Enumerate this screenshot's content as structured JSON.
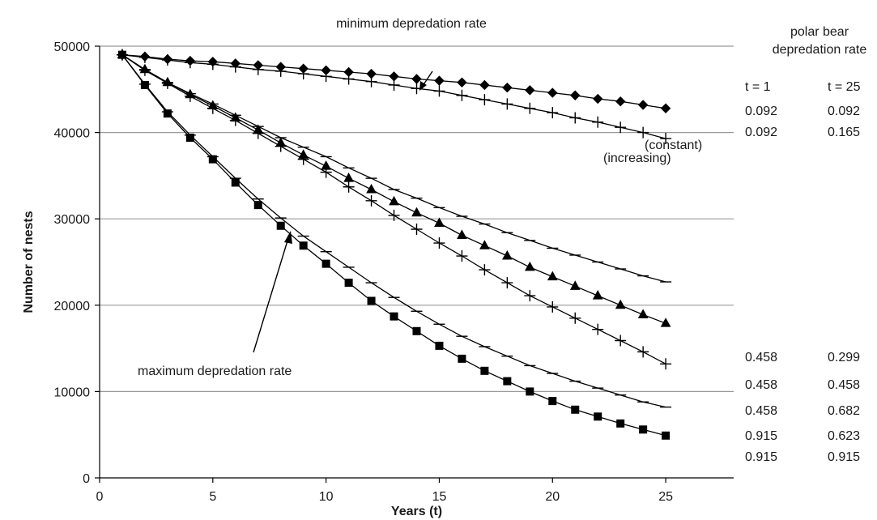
{
  "chart_data": {
    "type": "line",
    "xlabel": "Years (t)",
    "ylabel": "Number of nests",
    "xlim": [
      0,
      28
    ],
    "ylim": [
      0,
      50000
    ],
    "xticks": [
      "0",
      "5",
      "10",
      "15",
      "20",
      "25"
    ],
    "yticks": [
      "0",
      "10000",
      "20000",
      "30000",
      "40000",
      "50000"
    ],
    "grid": "horizontal",
    "x": [
      1,
      2,
      3,
      4,
      5,
      6,
      7,
      8,
      9,
      10,
      11,
      12,
      13,
      14,
      15,
      16,
      17,
      18,
      19,
      20,
      21,
      22,
      23,
      24,
      25
    ],
    "series": [
      {
        "marker": "diamond",
        "values": [
          49000,
          48800,
          48500,
          48300,
          48200,
          48000,
          47800,
          47600,
          47400,
          47200,
          47000,
          46800,
          46500,
          46200,
          46000,
          45800,
          45500,
          45200,
          44900,
          44600,
          44300,
          43900,
          43600,
          43200,
          42800
        ]
      },
      {
        "marker": "plus",
        "values": [
          49000,
          48700,
          48400,
          48100,
          47900,
          47600,
          47300,
          47100,
          46800,
          46500,
          46200,
          45900,
          45500,
          45100,
          44800,
          44300,
          43800,
          43300,
          42800,
          42300,
          41700,
          41200,
          40600,
          40000,
          39300
        ]
      },
      {
        "marker": "dash",
        "values": [
          49000,
          47300,
          45800,
          44500,
          43300,
          42000,
          40700,
          39400,
          38300,
          37200,
          35900,
          34700,
          33400,
          32400,
          31300,
          30300,
          29400,
          28400,
          27500,
          26600,
          25800,
          25000,
          24200,
          23400,
          22700
        ]
      },
      {
        "marker": "triangle",
        "values": [
          49000,
          47300,
          45800,
          44400,
          43100,
          41700,
          40300,
          38800,
          37400,
          36100,
          34700,
          33400,
          32000,
          30700,
          29500,
          28100,
          26900,
          25700,
          24400,
          23300,
          22200,
          21100,
          20000,
          18900,
          17900
        ]
      },
      {
        "marker": "plus",
        "values": [
          49000,
          47200,
          45700,
          44200,
          42800,
          41400,
          39900,
          38400,
          36900,
          35400,
          33700,
          32100,
          30400,
          28800,
          27200,
          25700,
          24100,
          22600,
          21100,
          19800,
          18500,
          17200,
          15900,
          14600,
          13200
        ]
      },
      {
        "marker": "dash",
        "values": [
          49000,
          45600,
          42400,
          39700,
          37200,
          34700,
          32300,
          30100,
          28000,
          26200,
          24400,
          22600,
          20900,
          19300,
          17800,
          16400,
          15200,
          14100,
          13000,
          12100,
          11200,
          10400,
          9600,
          8800,
          8200
        ]
      },
      {
        "marker": "square",
        "values": [
          49000,
          45500,
          42200,
          39400,
          36900,
          34200,
          31600,
          29200,
          26900,
          24800,
          22600,
          20500,
          18700,
          17000,
          15300,
          13800,
          12400,
          11200,
          10000,
          8900,
          7900,
          7100,
          6300,
          5600,
          4900
        ]
      }
    ],
    "annotations": {
      "min_label": "minimum depredation rate",
      "max_label": "maximum depredation rate",
      "constant_label": "(constant)",
      "increasing_label": "(increasing)"
    },
    "rate_table": {
      "title_line1": "polar bear",
      "title_line2": "depredation rate",
      "col1_header": "t = 1",
      "col2_header": "t = 25",
      "rows": [
        {
          "t1": "0.092",
          "t25": "0.092",
          "at": 43200
        },
        {
          "t1": "0.092",
          "t25": "0.165",
          "at": 39300
        },
        {
          "t1": "0.458",
          "t25": "0.299",
          "at": 22700
        },
        {
          "t1": "0.458",
          "t25": "0.458",
          "at": 17900
        },
        {
          "t1": "0.458",
          "t25": "0.682",
          "at": 13200
        },
        {
          "t1": "0.915",
          "t25": "0.623",
          "at": 8200
        },
        {
          "t1": "0.915",
          "t25": "0.915",
          "at": 4900
        }
      ]
    }
  }
}
